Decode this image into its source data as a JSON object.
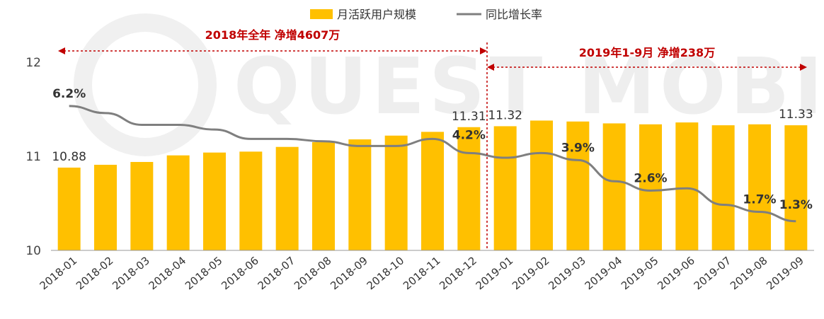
{
  "chart_data": {
    "type": "bar",
    "categories": [
      "2018-01",
      "2018-02",
      "2018-03",
      "2018-04",
      "2018-05",
      "2018-06",
      "2018-07",
      "2018-08",
      "2018-09",
      "2018-10",
      "2018-11",
      "2018-12",
      "2019-01",
      "2019-02",
      "2019-03",
      "2019-04",
      "2019-05",
      "2019-06",
      "2019-07",
      "2019-08",
      "2019-09"
    ],
    "ylim": [
      10,
      12
    ],
    "yticks": [
      "10",
      "11",
      "12"
    ],
    "series": [
      {
        "name": "月活跃用户规模",
        "type": "bar",
        "color": "#ffc000",
        "values": [
          10.88,
          10.91,
          10.94,
          11.01,
          11.04,
          11.05,
          11.1,
          11.15,
          11.18,
          11.22,
          11.26,
          11.31,
          11.32,
          11.38,
          11.37,
          11.35,
          11.34,
          11.36,
          11.33,
          11.34,
          11.33
        ]
      },
      {
        "name": "同比增长率",
        "type": "line",
        "color": "#7f7f7f",
        "values": [
          6.2,
          5.9,
          5.4,
          5.4,
          5.2,
          4.8,
          4.8,
          4.7,
          4.5,
          4.5,
          4.8,
          4.2,
          4.0,
          4.2,
          3.9,
          3.0,
          2.6,
          2.7,
          2.0,
          1.7,
          1.3
        ],
        "ylim": [
          0,
          8
        ]
      }
    ],
    "bar_labels": [
      {
        "index": 0,
        "text": "10.88"
      },
      {
        "index": 11,
        "text": "11.31"
      },
      {
        "index": 12,
        "text": "11.32"
      },
      {
        "index": 20,
        "text": "11.33"
      }
    ],
    "rate_labels": [
      {
        "index": 0,
        "text": "6.2%"
      },
      {
        "index": 11,
        "text": "4.2%"
      },
      {
        "index": 14,
        "text": "3.9%"
      },
      {
        "index": 16,
        "text": "2.6%"
      },
      {
        "index": 19,
        "text": "1.7%"
      },
      {
        "index": 20,
        "text": "1.3%"
      }
    ],
    "annotations": [
      {
        "text": "2018年全年  净增4607万",
        "from": "2018-01",
        "to": "2018-12"
      },
      {
        "text": "2019年1-9月  净增238万",
        "from": "2019-01",
        "to": "2019-09"
      }
    ],
    "legend": {
      "position": "top-center"
    },
    "watermark": "QUEST MOBILE",
    "annotation_color": "#c00000"
  }
}
